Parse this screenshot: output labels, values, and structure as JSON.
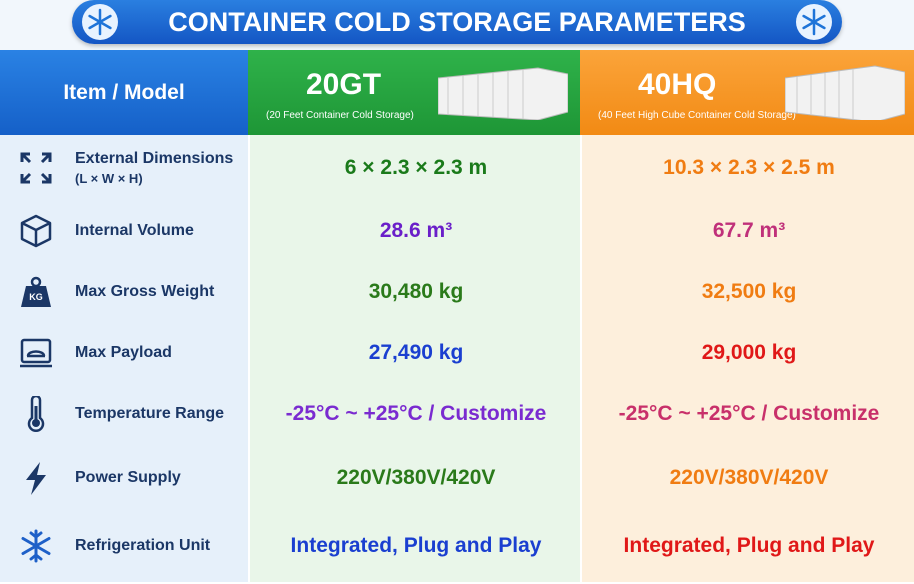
{
  "title": "CONTAINER COLD STORAGE PARAMETERS",
  "header": {
    "item_model": "Item / Model",
    "columns": [
      {
        "name": "20GT",
        "subtitle": "(20 Feet Container Cold Storage)"
      },
      {
        "name": "40HQ",
        "subtitle": "(40 Feet High Cube Container Cold Storage)"
      }
    ]
  },
  "rows": [
    {
      "label": "External Dimensions",
      "sublabel": "(L × W × H)",
      "values": [
        "6 × 2.3 × 2.3 m",
        "10.3 × 2.3 × 2.5 m"
      ]
    },
    {
      "label": "Internal Volume",
      "values": [
        "28.6 m³",
        "67.7 m³"
      ]
    },
    {
      "label": "Max Gross Weight",
      "values": [
        "30,480 kg",
        "32,500 kg"
      ]
    },
    {
      "label": "Max Payload",
      "values": [
        "27,490 kg",
        "29,000 kg"
      ]
    },
    {
      "label": "Temperature Range",
      "values": [
        "-25°C ~ +25°C / Customize",
        "-25°C ~ +25°C / Customize"
      ]
    },
    {
      "label": "Power Supply",
      "values": [
        "220V/380V/420V",
        "220V/380V/420V"
      ]
    },
    {
      "label": "Refrigeration Unit",
      "values": [
        "Integrated, Plug and Play",
        "Integrated, Plug and Play"
      ]
    }
  ]
}
